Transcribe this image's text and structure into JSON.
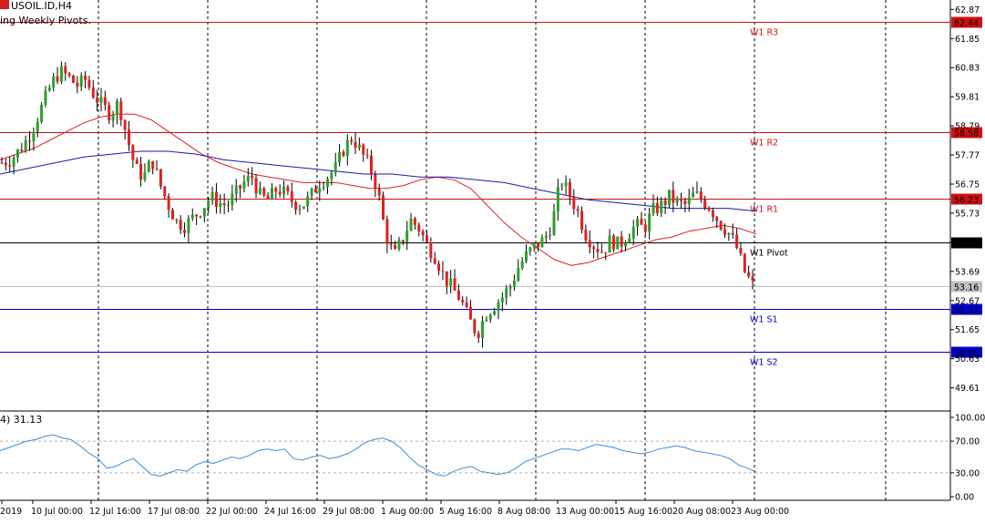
{
  "header": {
    "symbol_label": "USOIL.ID,H4",
    "indicator_label": "ing Weekly Pivots."
  },
  "osc_header": "4) 31.13",
  "colors": {
    "bull": "#2ca02c",
    "bear": "#e02020",
    "ma_fast": "#e02020",
    "ma_slow": "#1a1aaa",
    "resistance": "#d01010",
    "support": "#0000cc",
    "pivot": "#000000",
    "current": "#c0c0c0",
    "rsi": "#3a8fd8"
  },
  "chart_data": [
    {
      "type": "candlestick",
      "title": "",
      "y_ticks": [
        "62.87",
        "61.85",
        "60.83",
        "59.81",
        "58.79",
        "57.77",
        "56.75",
        "55.73",
        "54.71",
        "53.69",
        "52.67",
        "51.65",
        "50.63",
        "49.61"
      ],
      "ylim": [
        48.8,
        63.2
      ],
      "x_ticks": [
        "2019",
        "10 Jul 00:00",
        "12 Jul 16:00",
        "17 Jul 08:00",
        "22 Jul 00:00",
        "24 Jul 16:00",
        "29 Jul 08:00",
        "1 Aug 00:00",
        "5 Aug 16:00",
        "8 Aug 08:00",
        "13 Aug 00:00",
        "15 Aug 16:00",
        "20 Aug 08:00",
        "23 Aug 00:00"
      ],
      "pivots": [
        {
          "name": "W1 R3",
          "value": "62.44",
          "kind": "resistance"
        },
        {
          "name": "W1 R2",
          "value": "58.58",
          "kind": "resistance"
        },
        {
          "name": "W1 R1",
          "value": "56.23",
          "kind": "resistance"
        },
        {
          "name": "W1 Pivot",
          "value": "54.72",
          "kind": "pivot"
        },
        {
          "name": "W1 S1",
          "value": "52.37",
          "kind": "support"
        },
        {
          "name": "W1 S2",
          "value": "50.86",
          "kind": "support"
        }
      ],
      "current_price": "53.16",
      "close_path": [
        57.5,
        57.6,
        57.9,
        58.3,
        58.9,
        59.6,
        60.3,
        60.7,
        60.5,
        60.2,
        60.4,
        59.9,
        59.5,
        59.2,
        59.6,
        58.4,
        57.3,
        57.0,
        57.6,
        56.7,
        56.0,
        55.4,
        55.3,
        55.6,
        55.9,
        56.3,
        56.1,
        56.0,
        56.4,
        56.8,
        57.0,
        56.3,
        56.2,
        56.6,
        56.4,
        56.1,
        56.0,
        56.3,
        56.8,
        57.0,
        57.3,
        58.0,
        58.4,
        57.9,
        57.4,
        56.6,
        55.0,
        54.2,
        54.8,
        55.5,
        55.2,
        54.6,
        54.2,
        53.5,
        53.1,
        52.7,
        52.0,
        51.5,
        52.2,
        52.5,
        52.8,
        53.2,
        53.9,
        54.3,
        54.6,
        54.8,
        55.4,
        56.9,
        56.4,
        55.8,
        55.0,
        54.6,
        54.4,
        54.8,
        54.6,
        55.0,
        55.3,
        55.2,
        55.8,
        56.0,
        56.3,
        56.1,
        56.0,
        56.4,
        56.2,
        55.9,
        55.4,
        55.1,
        54.6,
        53.7,
        53.2
      ],
      "ma_fast": [
        57.6,
        57.8,
        58.0,
        58.3,
        58.6,
        58.9,
        59.1,
        59.2,
        59.2,
        59.0,
        58.6,
        58.2,
        57.8,
        57.5,
        57.3,
        57.1,
        57.0,
        56.9,
        56.8,
        56.8,
        56.8,
        56.7,
        56.6,
        56.6,
        56.7,
        56.9,
        57.0,
        56.9,
        56.6,
        56.0,
        55.4,
        54.9,
        54.5,
        54.1,
        53.9,
        54.0,
        54.2,
        54.4,
        54.6,
        54.8,
        54.9,
        55.1,
        55.2,
        55.3,
        55.2,
        55.0
      ],
      "ma_slow": [
        57.1,
        57.3,
        57.5,
        57.7,
        57.8,
        57.9,
        57.9,
        57.8,
        57.6,
        57.5,
        57.4,
        57.3,
        57.2,
        57.1,
        57.1,
        57.0,
        57.0,
        56.9,
        56.8,
        56.6,
        56.4,
        56.2,
        56.1,
        56.0,
        55.9,
        55.9,
        55.9,
        55.8
      ],
      "ma_slow_span": [
        0,
        0.78
      ]
    },
    {
      "type": "line",
      "title": "",
      "y_ticks": [
        "100.00",
        "70.00",
        "30.00",
        "0.00"
      ],
      "ylim": [
        0,
        100
      ],
      "levels": [
        70,
        30
      ],
      "values": [
        58,
        62,
        66,
        70,
        72,
        76,
        78,
        74,
        72,
        64,
        55,
        48,
        36,
        38,
        44,
        48,
        38,
        28,
        26,
        30,
        34,
        32,
        40,
        44,
        42,
        46,
        50,
        48,
        52,
        58,
        60,
        58,
        60,
        48,
        46,
        50,
        52,
        48,
        50,
        54,
        60,
        68,
        72,
        74,
        70,
        62,
        50,
        40,
        34,
        28,
        26,
        32,
        36,
        38,
        32,
        30,
        28,
        30,
        36,
        44,
        48,
        52,
        56,
        60,
        60,
        58,
        62,
        66,
        64,
        62,
        58,
        56,
        54,
        56,
        60,
        62,
        64,
        62,
        58,
        56,
        54,
        52,
        48,
        40,
        36,
        31
      ]
    }
  ]
}
